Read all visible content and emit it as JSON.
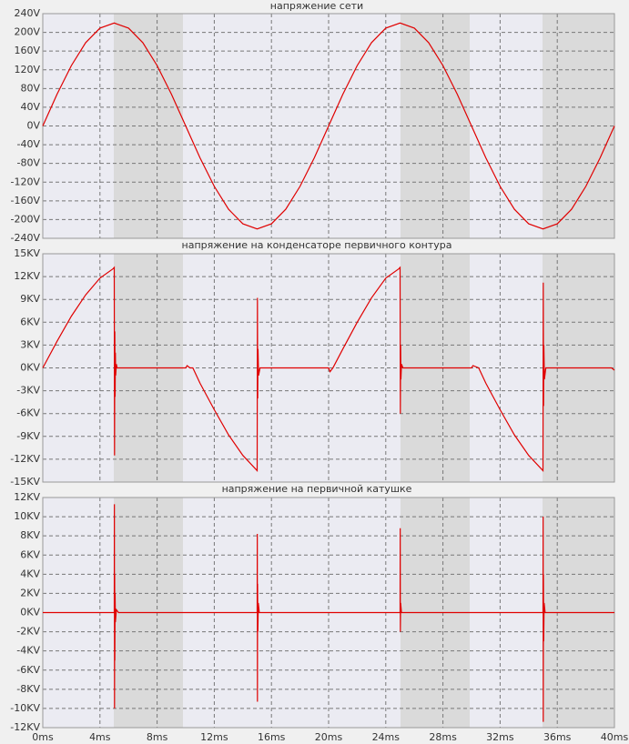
{
  "chart_data": [
    {
      "type": "line",
      "title": "напряжение сети",
      "x": [
        0,
        1,
        2,
        3,
        4,
        5,
        6,
        7,
        8,
        9,
        10,
        11,
        12,
        13,
        14,
        15,
        16,
        17,
        18,
        19,
        20,
        21,
        22,
        23,
        24,
        25,
        26,
        27,
        28,
        29,
        30,
        31,
        32,
        33,
        34,
        35,
        36,
        37,
        38,
        39,
        40
      ],
      "values": [
        0,
        68,
        129,
        178,
        209,
        220,
        209,
        178,
        129,
        68,
        0,
        -68,
        -129,
        -178,
        -209,
        -220,
        -209,
        -178,
        -129,
        -68,
        0,
        68,
        129,
        178,
        209,
        220,
        209,
        178,
        129,
        68,
        0,
        -68,
        -129,
        -178,
        -209,
        -220,
        -209,
        -178,
        -129,
        -68,
        0
      ],
      "color": "#e00000",
      "xlim": [
        0,
        40
      ],
      "ylim": [
        -240,
        240
      ],
      "grid": true,
      "yticks": [
        {
          "value": 240,
          "label": "240V"
        },
        {
          "value": 200,
          "label": "200V"
        },
        {
          "value": 160,
          "label": "160V"
        },
        {
          "value": 120,
          "label": "120V"
        },
        {
          "value": 80,
          "label": "80V"
        },
        {
          "value": 40,
          "label": "40V"
        },
        {
          "value": 0,
          "label": "0V"
        },
        {
          "value": -40,
          "label": "-40V"
        },
        {
          "value": -80,
          "label": "-80V"
        },
        {
          "value": -120,
          "label": "-120V"
        },
        {
          "value": -160,
          "label": "-160V"
        },
        {
          "value": -200,
          "label": "-200V"
        },
        {
          "value": -240,
          "label": "-240V"
        }
      ]
    },
    {
      "type": "line",
      "title": "напряжение на конденсаторе первичного контура",
      "x": [
        0,
        1,
        2,
        3,
        4,
        4.9,
        5.0,
        5.02,
        5.04,
        5.06,
        5.08,
        5.1,
        5.15,
        5.2,
        10,
        10.1,
        10.3,
        10.5,
        11,
        12,
        13,
        14,
        14.9,
        15.0,
        15.02,
        15.04,
        15.06,
        15.1,
        15.2,
        20,
        20.1,
        20.3,
        21,
        22,
        23,
        24,
        24.9,
        25.0,
        25.02,
        25.04,
        25.06,
        25.1,
        25.2,
        30,
        30.1,
        30.5,
        31,
        32,
        33,
        34,
        34.9,
        35.0,
        35.02,
        35.04,
        35.06,
        35.1,
        35.2,
        39.8,
        40
      ],
      "values": [
        0,
        3.5,
        6.8,
        9.6,
        11.8,
        13,
        13.2,
        -11.5,
        4.8,
        -3.8,
        2,
        -1,
        0.5,
        0,
        0,
        0.3,
        0,
        0,
        -2,
        -5.5,
        -8.8,
        -11.5,
        -13.3,
        -13.5,
        9.2,
        -4,
        2.5,
        -1,
        0,
        0,
        -0.5,
        0,
        2.5,
        6,
        9.2,
        11.8,
        13,
        13.2,
        -6,
        3,
        -1.5,
        0.5,
        0,
        0,
        0.3,
        0,
        -2,
        -5.5,
        -8.8,
        -11.5,
        -13.3,
        -13.5,
        11.2,
        -5,
        3,
        -1.5,
        0,
        0,
        -0.3
      ],
      "color": "#e00000",
      "xlim": [
        0,
        40
      ],
      "ylim": [
        -15,
        15
      ],
      "grid": true,
      "yticks": [
        {
          "value": 15,
          "label": "15KV"
        },
        {
          "value": 12,
          "label": "12KV"
        },
        {
          "value": 9,
          "label": "9KV"
        },
        {
          "value": 6,
          "label": "6KV"
        },
        {
          "value": 3,
          "label": "3KV"
        },
        {
          "value": 0,
          "label": "0KV"
        },
        {
          "value": -3,
          "label": "-3KV"
        },
        {
          "value": -6,
          "label": "-6KV"
        },
        {
          "value": -9,
          "label": "-9KV"
        },
        {
          "value": -12,
          "label": "-12KV"
        },
        {
          "value": -15,
          "label": "-15KV"
        }
      ]
    },
    {
      "type": "line",
      "title": "напряжение на первичной катушке",
      "x": [
        0,
        5,
        5.01,
        5.02,
        5.03,
        5.04,
        5.06,
        5.08,
        5.15,
        5.3,
        15,
        15.01,
        15.02,
        15.03,
        15.05,
        15.08,
        15.15,
        25,
        25.01,
        25.02,
        25.04,
        25.1,
        35,
        35.01,
        35.02,
        35.03,
        35.05,
        35.08,
        35.15,
        40
      ],
      "values": [
        0,
        0,
        11.3,
        -10,
        4,
        -5,
        2,
        -1,
        0.3,
        0,
        0,
        8.2,
        -9.3,
        3,
        -2,
        1,
        0,
        0,
        8.8,
        -2,
        1,
        0,
        0,
        10,
        -11.4,
        4,
        -3,
        1,
        0,
        0
      ],
      "color": "#e00000",
      "xlim": [
        0,
        40
      ],
      "ylim": [
        -12,
        12
      ],
      "grid": true,
      "yticks": [
        {
          "value": 12,
          "label": "12KV"
        },
        {
          "value": 10,
          "label": "10KV"
        },
        {
          "value": 8,
          "label": "8KV"
        },
        {
          "value": 6,
          "label": "6KV"
        },
        {
          "value": 4,
          "label": "4KV"
        },
        {
          "value": 2,
          "label": "2KV"
        },
        {
          "value": 0,
          "label": "0KV"
        },
        {
          "value": -2,
          "label": "-2KV"
        },
        {
          "value": -4,
          "label": "-4KV"
        },
        {
          "value": -6,
          "label": "-6KV"
        },
        {
          "value": -8,
          "label": "-8KV"
        },
        {
          "value": -10,
          "label": "-10KV"
        },
        {
          "value": -12,
          "label": "-12KV"
        }
      ],
      "xticks": [
        {
          "value": 0,
          "label": "0ms"
        },
        {
          "value": 4,
          "label": "4ms"
        },
        {
          "value": 8,
          "label": "8ms"
        },
        {
          "value": 12,
          "label": "12ms"
        },
        {
          "value": 16,
          "label": "16ms"
        },
        {
          "value": 20,
          "label": "20ms"
        },
        {
          "value": 24,
          "label": "24ms"
        },
        {
          "value": 28,
          "label": "28ms"
        },
        {
          "value": 32,
          "label": "32ms"
        },
        {
          "value": 36,
          "label": "36ms"
        },
        {
          "value": 40,
          "label": "40ms"
        }
      ]
    }
  ]
}
